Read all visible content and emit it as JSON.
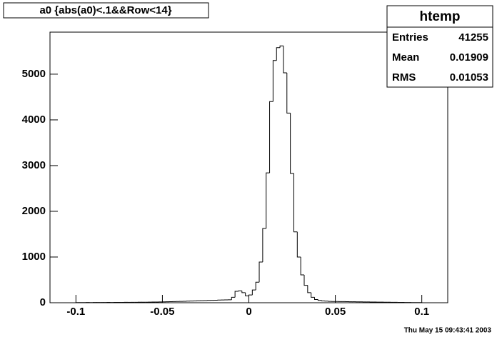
{
  "chart_data": {
    "type": "histogram",
    "title": "a0 {abs(a0)<.1&&Row<14}",
    "bins": [
      -0.1,
      -0.098,
      -0.096,
      -0.094,
      -0.092,
      -0.09,
      -0.088,
      -0.086,
      -0.084,
      -0.082,
      -0.08,
      -0.078,
      -0.076,
      -0.074,
      -0.072,
      -0.07,
      -0.068,
      -0.066,
      -0.064,
      -0.062,
      -0.06,
      -0.058,
      -0.056,
      -0.054,
      -0.052,
      -0.05,
      -0.048,
      -0.046,
      -0.044,
      -0.042,
      -0.04,
      -0.038,
      -0.036,
      -0.034,
      -0.032,
      -0.03,
      -0.028,
      -0.026,
      -0.024,
      -0.022,
      -0.02,
      -0.018,
      -0.016,
      -0.014,
      -0.012,
      -0.01,
      -0.008,
      -0.006,
      -0.004,
      -0.002,
      0,
      0.002,
      0.004,
      0.006,
      0.008,
      0.01,
      0.012,
      0.014,
      0.016,
      0.018,
      0.02,
      0.022,
      0.024,
      0.026,
      0.028,
      0.03,
      0.032,
      0.034,
      0.036,
      0.038,
      0.04,
      0.042,
      0.044,
      0.046,
      0.048,
      0.05,
      0.052,
      0.054,
      0.056,
      0.058,
      0.06,
      0.062,
      0.064,
      0.066,
      0.068,
      0.07,
      0.072,
      0.074,
      0.076,
      0.078,
      0.08,
      0.082,
      0.084,
      0.086,
      0.088,
      0.09,
      0.092,
      0.094,
      0.096,
      0.098,
      0.1
    ],
    "counts": [
      3,
      4,
      3,
      5,
      4,
      5,
      6,
      5,
      6,
      7,
      6,
      7,
      8,
      8,
      9,
      9,
      10,
      10,
      11,
      12,
      12,
      14,
      15,
      16,
      18,
      20,
      22,
      24,
      26,
      28,
      30,
      32,
      35,
      38,
      40,
      42,
      45,
      47,
      50,
      52,
      55,
      58,
      60,
      62,
      65,
      120,
      250,
      260,
      220,
      150,
      170,
      280,
      450,
      890,
      1625,
      2840,
      4400,
      5300,
      5580,
      5620,
      5030,
      4150,
      2830,
      1550,
      1000,
      610,
      380,
      220,
      120,
      70,
      50,
      40,
      35,
      30,
      28,
      27,
      26,
      25,
      24,
      22,
      21,
      20,
      19,
      18,
      17,
      16,
      15,
      14,
      13,
      12,
      11,
      10,
      9,
      8,
      7,
      6,
      5,
      4,
      3,
      3
    ],
    "color": "#000000",
    "xlim": [
      -0.115,
      0.115
    ],
    "xticks": [
      -0.1,
      -0.05,
      0,
      0.05,
      0.1
    ],
    "ylim": [
      0,
      5920
    ],
    "yticks": [
      0,
      1000,
      2000,
      3000,
      4000,
      5000
    ],
    "stats": {
      "title": "htemp",
      "rows": [
        {
          "label": "Entries",
          "value": 41255
        },
        {
          "label": "Mean",
          "value": 0.01909
        },
        {
          "label": "RMS",
          "value": 0.01053
        }
      ]
    },
    "footer": "Thu May 15 09:43:41 2003"
  }
}
